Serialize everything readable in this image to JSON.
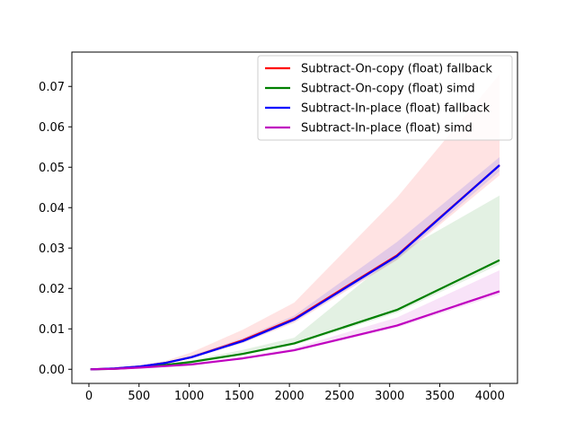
{
  "chart_data": {
    "type": "line",
    "xlim": [
      -170,
      4275
    ],
    "ylim": [
      -0.0035,
      0.0785
    ],
    "xticks": [
      0,
      500,
      1000,
      1500,
      2000,
      2500,
      3000,
      3500,
      4000
    ],
    "yticks": [
      0.0,
      0.01,
      0.02,
      0.03,
      0.04,
      0.05,
      0.06,
      0.07
    ],
    "xtick_labels": [
      "0",
      "500",
      "1000",
      "1500",
      "2000",
      "2500",
      "3000",
      "3500",
      "4000"
    ],
    "ytick_labels": [
      "0.00",
      "0.01",
      "0.02",
      "0.03",
      "0.04",
      "0.05",
      "0.06",
      "0.07"
    ],
    "x": [
      16,
      256,
      512,
      768,
      1024,
      1536,
      2048,
      3072,
      4096
    ],
    "grid": false,
    "legend_position": "top-right",
    "series": [
      {
        "name": "Subtract-On-copy (float) fallback",
        "color": "#ff0000",
        "values": [
          0.0,
          0.0002,
          0.0007,
          0.0016,
          0.003,
          0.0072,
          0.0125,
          0.0282,
          0.0505
        ],
        "lower": [
          0.0,
          0.0002,
          0.0006,
          0.0014,
          0.0027,
          0.0065,
          0.0115,
          0.027,
          0.048
        ],
        "upper": [
          0.0,
          0.0003,
          0.0009,
          0.0021,
          0.0042,
          0.0098,
          0.0165,
          0.0425,
          0.073
        ]
      },
      {
        "name": "Subtract-On-copy (float) simd",
        "color": "#008000",
        "values": [
          0.0,
          0.0001,
          0.0005,
          0.0011,
          0.0018,
          0.0038,
          0.0064,
          0.0147,
          0.027
        ],
        "lower": [
          0.0,
          0.0001,
          0.0004,
          0.001,
          0.0015,
          0.0035,
          0.006,
          0.014,
          0.026
        ],
        "upper": [
          0.0,
          0.0002,
          0.0006,
          0.0013,
          0.0022,
          0.0048,
          0.0078,
          0.0285,
          0.043
        ]
      },
      {
        "name": "Subtract-In-place (float) fallback",
        "color": "#0000ff",
        "values": [
          0.0,
          0.0002,
          0.0007,
          0.0016,
          0.003,
          0.007,
          0.0123,
          0.028,
          0.0505
        ],
        "lower": [
          0.0,
          0.0002,
          0.0006,
          0.0015,
          0.0028,
          0.0066,
          0.0118,
          0.0272,
          0.049
        ],
        "upper": [
          0.0,
          0.0002,
          0.0008,
          0.0018,
          0.0034,
          0.0077,
          0.0133,
          0.0315,
          0.0525
        ]
      },
      {
        "name": "Subtract-In-place (float) simd",
        "color": "#bf00bf",
        "values": [
          0.0,
          0.0001,
          0.0004,
          0.0008,
          0.0012,
          0.0027,
          0.0047,
          0.0108,
          0.0193
        ],
        "lower": [
          0.0,
          0.0001,
          0.0003,
          0.0007,
          0.0011,
          0.0025,
          0.0044,
          0.0103,
          0.0185
        ],
        "upper": [
          0.0,
          0.0001,
          0.0005,
          0.001,
          0.0015,
          0.0031,
          0.0053,
          0.0128,
          0.0245
        ]
      }
    ]
  }
}
